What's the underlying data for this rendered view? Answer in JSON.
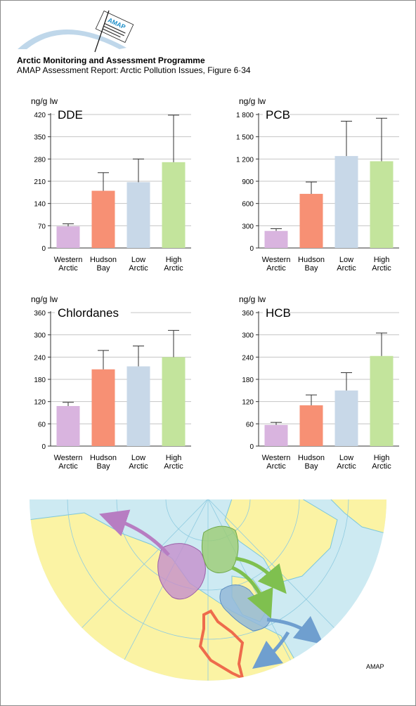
{
  "header": {
    "org_title": "Arctic Monitoring and Assessment Programme",
    "report_title": "AMAP Assessment Report: Arctic Pollution Issues, Figure 6·34",
    "logo_text": "AMAP"
  },
  "chart_data": [
    {
      "type": "bar",
      "title": "DDE",
      "ylabel": "ng/g lw",
      "categories": [
        [
          "Western",
          "Arctic"
        ],
        [
          "Hudson",
          "Bay"
        ],
        [
          "Low",
          "Arctic"
        ],
        [
          "High",
          "Arctic"
        ]
      ],
      "values": [
        68,
        180,
        207,
        270
      ],
      "error": [
        76,
        237,
        280,
        418
      ],
      "colors": [
        "#d9b4df",
        "#f79074",
        "#c8d8e8",
        "#c3e49c"
      ],
      "ylim": [
        0,
        420
      ],
      "yticks": [
        "0",
        "70",
        "140",
        "210",
        "280",
        "350",
        "420"
      ],
      "grid": "horizontal"
    },
    {
      "type": "bar",
      "title": "PCB",
      "ylabel": "ng/g lw",
      "categories": [
        [
          "Western",
          "Arctic"
        ],
        [
          "Hudson",
          "Bay"
        ],
        [
          "Low",
          "Arctic"
        ],
        [
          "High",
          "Arctic"
        ]
      ],
      "values": [
        230,
        730,
        1240,
        1170
      ],
      "error": [
        260,
        890,
        1710,
        1750
      ],
      "colors": [
        "#d9b4df",
        "#f79074",
        "#c8d8e8",
        "#c3e49c"
      ],
      "ylim": [
        0,
        1800
      ],
      "yticks": [
        "0",
        "300",
        "600",
        "900",
        "1 200",
        "1 500",
        "1 800"
      ],
      "grid": "horizontal"
    },
    {
      "type": "bar",
      "title": "Chlordanes",
      "ylabel": "ng/g lw",
      "categories": [
        [
          "Western",
          "Arctic"
        ],
        [
          "Hudson",
          "Bay"
        ],
        [
          "Low",
          "Arctic"
        ],
        [
          "High",
          "Arctic"
        ]
      ],
      "values": [
        108,
        207,
        215,
        240
      ],
      "error": [
        118,
        258,
        270,
        312
      ],
      "colors": [
        "#d9b4df",
        "#f79074",
        "#c8d8e8",
        "#c3e49c"
      ],
      "ylim": [
        0,
        360
      ],
      "yticks": [
        "0",
        "60",
        "120",
        "180",
        "240",
        "300",
        "360"
      ],
      "grid": "horizontal"
    },
    {
      "type": "bar",
      "title": "HCB",
      "ylabel": "ng/g lw",
      "categories": [
        [
          "Western",
          "Arctic"
        ],
        [
          "Hudson",
          "Bay"
        ],
        [
          "Low",
          "Arctic"
        ],
        [
          "High",
          "Arctic"
        ]
      ],
      "values": [
        57,
        110,
        150,
        243
      ],
      "error": [
        64,
        138,
        198,
        305
      ],
      "colors": [
        "#d9b4df",
        "#f79074",
        "#c8d8e8",
        "#c3e49c"
      ],
      "ylim": [
        0,
        360
      ],
      "yticks": [
        "0",
        "60",
        "120",
        "180",
        "240",
        "300",
        "360"
      ],
      "grid": "horizontal"
    }
  ],
  "map": {
    "credit": "AMAP",
    "ocean_color": "#cdeaf2",
    "land_color": "#fbf3a4",
    "region_colors": {
      "western_arctic": "#c58fcc",
      "hudson_bay": "#ee6b4c",
      "low_arctic": "#93b8d8",
      "high_arctic": "#9ccc73"
    }
  }
}
